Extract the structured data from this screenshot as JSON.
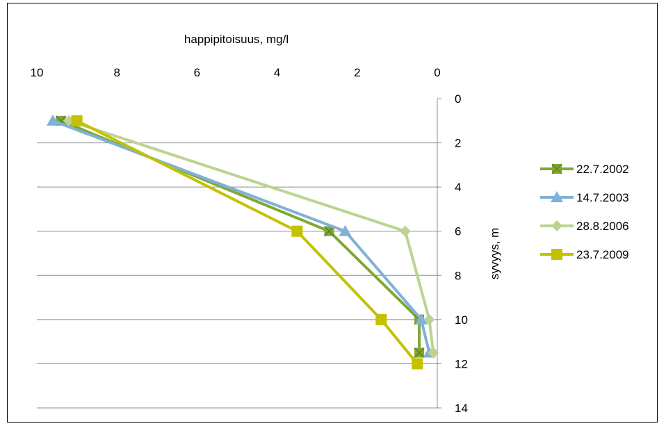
{
  "chart_data": {
    "type": "line",
    "xlabel": "happipitoisuus, mg/l",
    "ylabel": "syvyys, m",
    "xlim": [
      10,
      0
    ],
    "ylim": [
      0,
      14
    ],
    "x_reversed": true,
    "y_reversed": true,
    "x_axis_position": "top",
    "y_axis_position": "right",
    "x_ticks": [
      "10",
      "8",
      "6",
      "4",
      "2",
      "0"
    ],
    "y_ticks": [
      "0",
      "2",
      "4",
      "6",
      "8",
      "10",
      "12",
      "14"
    ],
    "grid": "horizontal",
    "legend_position": "right",
    "series": [
      {
        "name": "22.7.2002",
        "color": "#7fa834",
        "marker": "square-with-x",
        "points": [
          [
            9.4,
            1
          ],
          [
            2.7,
            6
          ],
          [
            0.45,
            10
          ],
          [
            0.45,
            11.5
          ]
        ]
      },
      {
        "name": "14.7.2003",
        "color": "#7fb2d6",
        "marker": "triangle",
        "points": [
          [
            9.6,
            1
          ],
          [
            2.3,
            6
          ],
          [
            0.4,
            10
          ],
          [
            0.2,
            11.5
          ]
        ]
      },
      {
        "name": "28.8.2006",
        "color": "#bcd392",
        "marker": "diamond",
        "points": [
          [
            9.2,
            1
          ],
          [
            0.8,
            6
          ],
          [
            0.2,
            10
          ],
          [
            0.1,
            11.5
          ]
        ]
      },
      {
        "name": "23.7.2009",
        "color": "#c3c100",
        "marker": "square",
        "points": [
          [
            9.0,
            1
          ],
          [
            3.5,
            6
          ],
          [
            1.4,
            10
          ],
          [
            0.5,
            12
          ]
        ]
      }
    ]
  }
}
